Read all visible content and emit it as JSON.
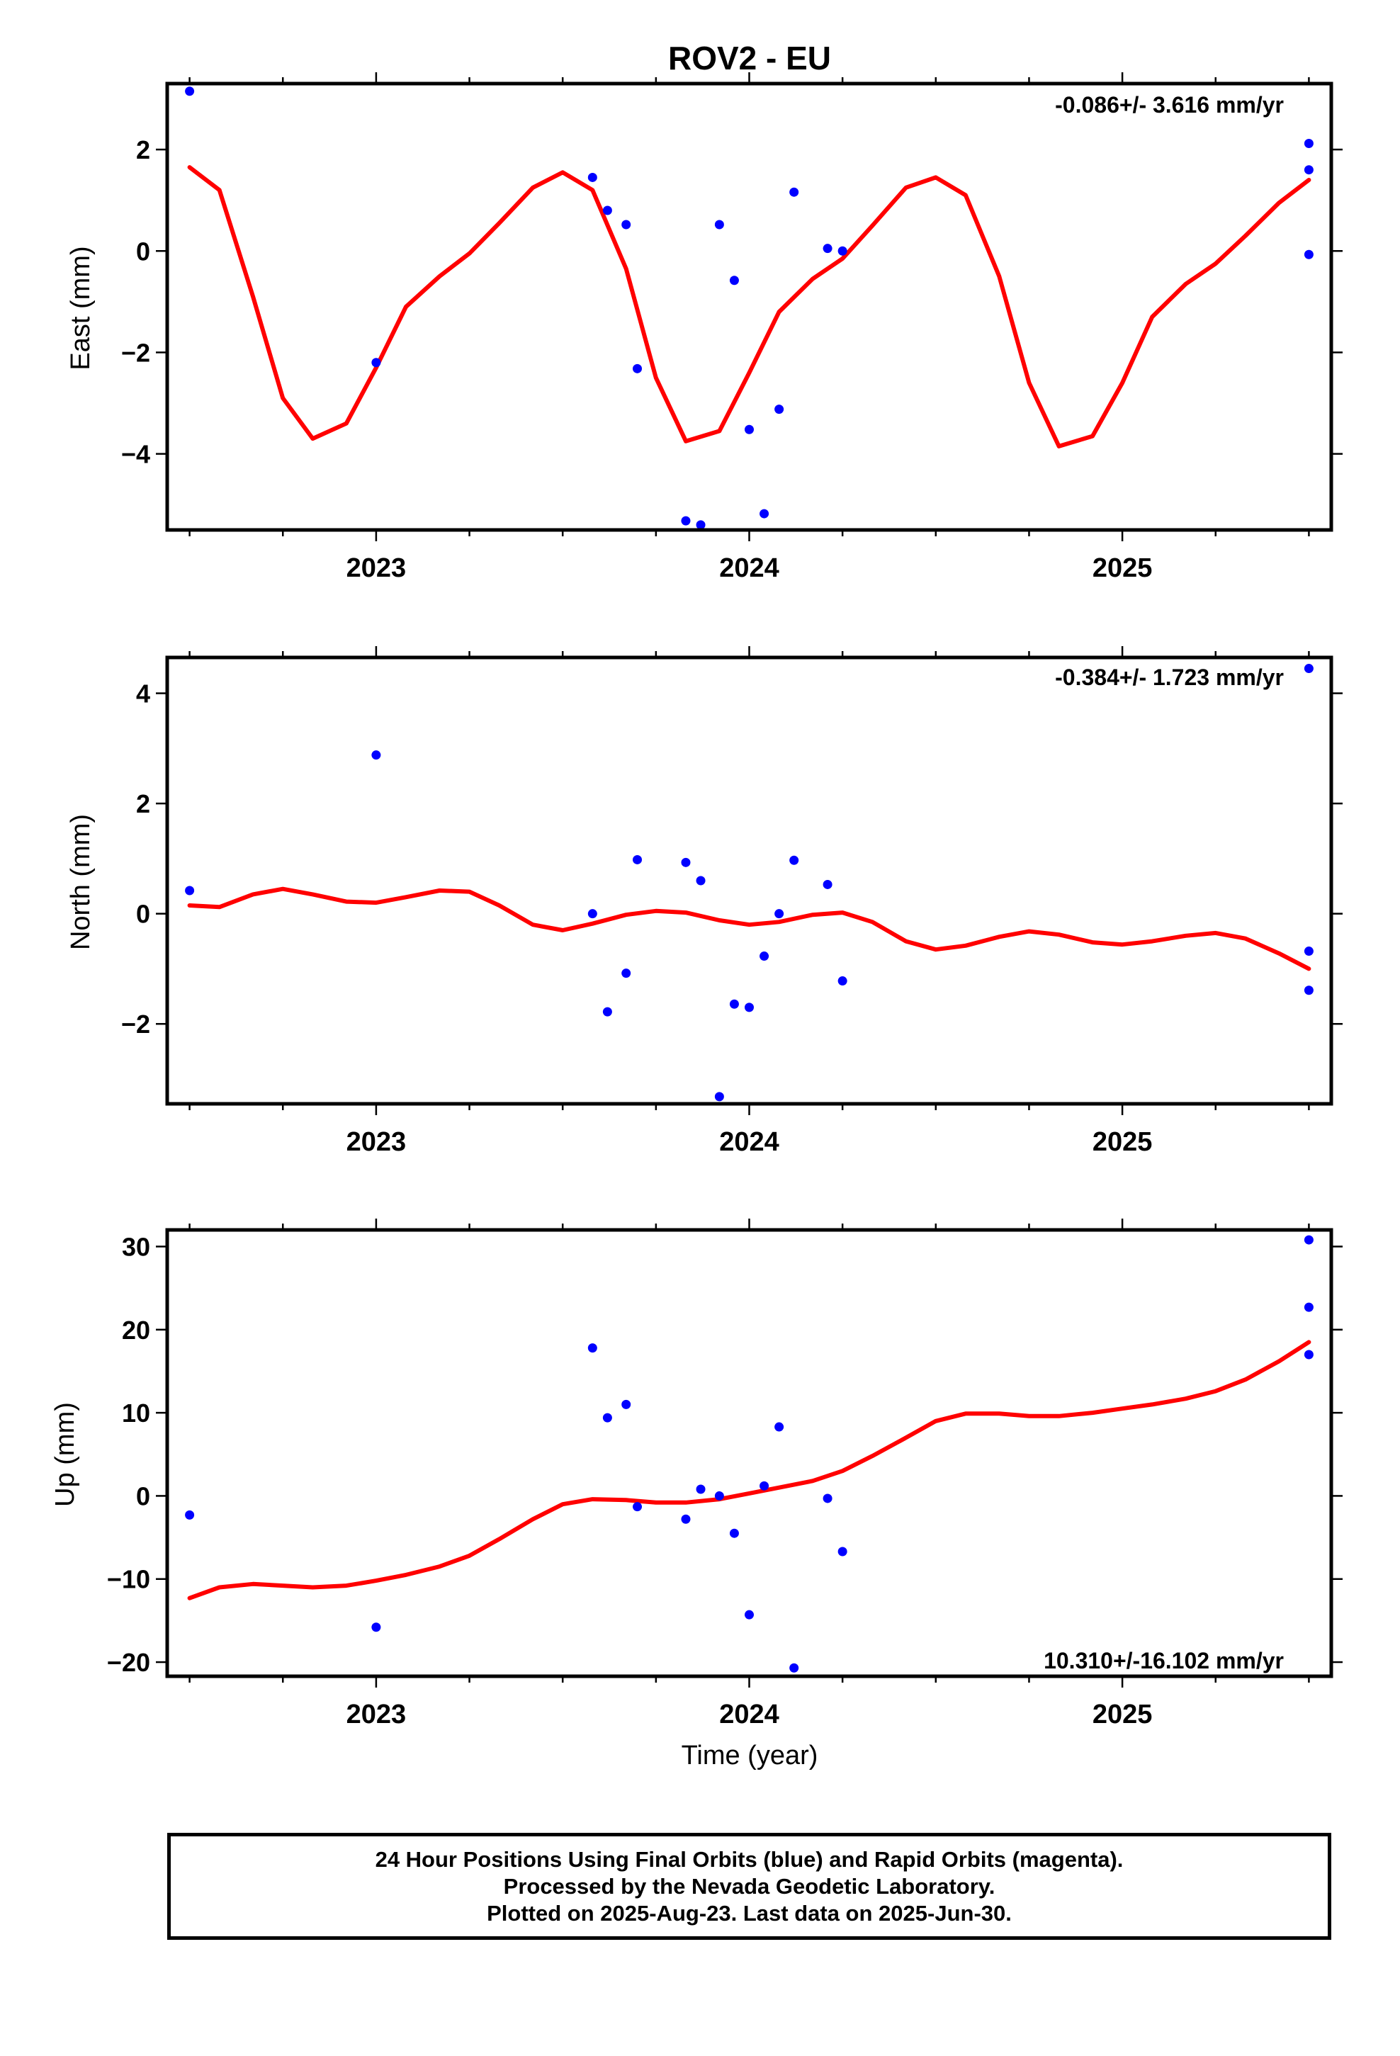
{
  "title": "ROV2 - EU",
  "colors": {
    "fit_line": "#ff0000",
    "points": "#0000ff",
    "frame": "#000000"
  },
  "xlabel": "Time (year)",
  "chart_data": [
    {
      "type": "scatter",
      "panel": "east",
      "ylabel": "East (mm)",
      "rate_label": "-0.086+/- 3.616 mm/yr",
      "xlim": [
        2022.44,
        2025.56
      ],
      "ylim": [
        -5.5,
        3.3
      ],
      "x_ticks": [
        2023,
        2024,
        2025
      ],
      "x_tick_labels": [
        "2023",
        "2024",
        "2025"
      ],
      "y_ticks": [
        2,
        0,
        -2,
        -4
      ],
      "y_tick_labels": [
        "2",
        "0",
        "−2",
        "−4"
      ],
      "points": {
        "x": [
          2022.5,
          2023.0,
          2023.58,
          2023.62,
          2023.67,
          2023.7,
          2023.83,
          2023.87,
          2023.92,
          2023.96,
          2024.0,
          2024.04,
          2024.08,
          2024.12,
          2024.21,
          2024.25,
          2025.5,
          2025.5,
          2025.5
        ],
        "y": [
          3.15,
          -2.2,
          1.45,
          0.8,
          0.52,
          -2.32,
          -5.32,
          -5.4,
          0.52,
          -0.58,
          -3.52,
          -5.18,
          -3.12,
          1.16,
          0.05,
          0.0,
          2.12,
          1.6,
          -0.07
        ]
      },
      "fit_line": {
        "x": [
          2022.5,
          2022.58,
          2022.67,
          2022.75,
          2022.83,
          2022.92,
          2023.0,
          2023.08,
          2023.17,
          2023.25,
          2023.33,
          2023.42,
          2023.5,
          2023.58,
          2023.67,
          2023.75,
          2023.83,
          2023.92,
          2024.0,
          2024.08,
          2024.17,
          2024.25,
          2024.33,
          2024.42,
          2024.5,
          2024.58,
          2024.67,
          2024.75,
          2024.83,
          2024.92,
          2025.0,
          2025.08,
          2025.17,
          2025.25,
          2025.33,
          2025.42,
          2025.5
        ],
        "y": [
          1.65,
          1.2,
          -0.9,
          -2.9,
          -3.7,
          -3.4,
          -2.3,
          -1.1,
          -0.5,
          -0.05,
          0.55,
          1.25,
          1.55,
          1.2,
          -0.35,
          -2.5,
          -3.75,
          -3.55,
          -2.4,
          -1.2,
          -0.55,
          -0.15,
          0.5,
          1.25,
          1.45,
          1.1,
          -0.5,
          -2.6,
          -3.85,
          -3.65,
          -2.6,
          -1.3,
          -0.65,
          -0.25,
          0.3,
          0.95,
          1.4
        ]
      }
    },
    {
      "type": "scatter",
      "panel": "north",
      "ylabel": "North (mm)",
      "rate_label": "-0.384+/- 1.723 mm/yr",
      "xlim": [
        2022.44,
        2025.56
      ],
      "ylim": [
        -3.45,
        4.65
      ],
      "x_ticks": [
        2023,
        2024,
        2025
      ],
      "x_tick_labels": [
        "2023",
        "2024",
        "2025"
      ],
      "y_ticks": [
        4,
        2,
        0,
        -2
      ],
      "y_tick_labels": [
        "4",
        "2",
        "0",
        "−2"
      ],
      "points": {
        "x": [
          2022.5,
          2023.0,
          2023.58,
          2023.62,
          2023.67,
          2023.7,
          2023.83,
          2023.87,
          2023.92,
          2023.96,
          2024.0,
          2024.04,
          2024.08,
          2024.12,
          2024.21,
          2024.25,
          2025.5,
          2025.5,
          2025.5
        ],
        "y": [
          0.42,
          2.88,
          0.0,
          -1.78,
          -1.08,
          0.98,
          0.93,
          0.6,
          -3.32,
          -1.64,
          -1.7,
          -0.77,
          0.0,
          0.97,
          0.53,
          -1.22,
          4.45,
          -0.68,
          -1.39
        ]
      },
      "fit_line": {
        "x": [
          2022.5,
          2022.58,
          2022.67,
          2022.75,
          2022.83,
          2022.92,
          2023.0,
          2023.08,
          2023.17,
          2023.25,
          2023.33,
          2023.42,
          2023.5,
          2023.58,
          2023.67,
          2023.75,
          2023.83,
          2023.92,
          2024.0,
          2024.08,
          2024.17,
          2024.25,
          2024.33,
          2024.42,
          2024.5,
          2024.58,
          2024.67,
          2024.75,
          2024.83,
          2024.92,
          2025.0,
          2025.08,
          2025.17,
          2025.25,
          2025.33,
          2025.42,
          2025.5
        ],
        "y": [
          0.15,
          0.12,
          0.35,
          0.45,
          0.35,
          0.22,
          0.2,
          0.3,
          0.42,
          0.4,
          0.15,
          -0.2,
          -0.3,
          -0.18,
          -0.02,
          0.05,
          0.02,
          -0.12,
          -0.2,
          -0.15,
          -0.02,
          0.02,
          -0.15,
          -0.5,
          -0.65,
          -0.58,
          -0.42,
          -0.32,
          -0.38,
          -0.52,
          -0.56,
          -0.5,
          -0.4,
          -0.35,
          -0.45,
          -0.72,
          -1.0
        ]
      }
    },
    {
      "type": "scatter",
      "panel": "up",
      "ylabel": "Up (mm)",
      "rate_label": "10.310+/-16.102 mm/yr",
      "xlim": [
        2022.44,
        2025.56
      ],
      "ylim": [
        -21.7,
        32.0
      ],
      "x_ticks": [
        2023,
        2024,
        2025
      ],
      "x_tick_labels": [
        "2023",
        "2024",
        "2025"
      ],
      "y_ticks": [
        30,
        20,
        10,
        0,
        -10,
        -20
      ],
      "y_tick_labels": [
        "30",
        "20",
        "10",
        "0",
        "−10",
        "−20"
      ],
      "points": {
        "x": [
          2022.5,
          2023.0,
          2023.58,
          2023.62,
          2023.67,
          2023.7,
          2023.83,
          2023.87,
          2023.92,
          2023.96,
          2024.0,
          2024.04,
          2024.08,
          2024.12,
          2024.21,
          2024.25,
          2025.5,
          2025.5,
          2025.5
        ],
        "y": [
          -2.3,
          -15.8,
          17.8,
          9.4,
          11.0,
          -1.3,
          -2.8,
          0.8,
          0.0,
          -4.5,
          -14.3,
          1.2,
          8.3,
          -20.7,
          -0.3,
          -6.7,
          30.8,
          22.7,
          17.0
        ]
      },
      "fit_line": {
        "x": [
          2022.5,
          2022.58,
          2022.67,
          2022.75,
          2022.83,
          2022.92,
          2023.0,
          2023.08,
          2023.17,
          2023.25,
          2023.33,
          2023.42,
          2023.5,
          2023.58,
          2023.67,
          2023.75,
          2023.83,
          2023.92,
          2024.0,
          2024.08,
          2024.17,
          2024.25,
          2024.33,
          2024.42,
          2024.5,
          2024.58,
          2024.67,
          2024.75,
          2024.83,
          2024.92,
          2025.0,
          2025.08,
          2025.17,
          2025.25,
          2025.33,
          2025.42,
          2025.5
        ],
        "y": [
          -12.3,
          -11.0,
          -10.6,
          -10.8,
          -11.0,
          -10.8,
          -10.2,
          -9.5,
          -8.5,
          -7.2,
          -5.2,
          -2.8,
          -1.0,
          -0.4,
          -0.5,
          -0.8,
          -0.8,
          -0.4,
          0.3,
          1.0,
          1.8,
          3.0,
          4.8,
          7.0,
          9.0,
          9.9,
          9.9,
          9.6,
          9.6,
          10.0,
          10.5,
          11.0,
          11.7,
          12.6,
          14.0,
          16.2,
          18.5
        ]
      }
    }
  ],
  "caption": {
    "line1": "24 Hour Positions Using Final Orbits (blue) and Rapid Orbits (magenta).",
    "line2": "Processed by the Nevada Geodetic Laboratory.",
    "line3": "Plotted on 2025-Aug-23. Last data on 2025-Jun-30."
  }
}
